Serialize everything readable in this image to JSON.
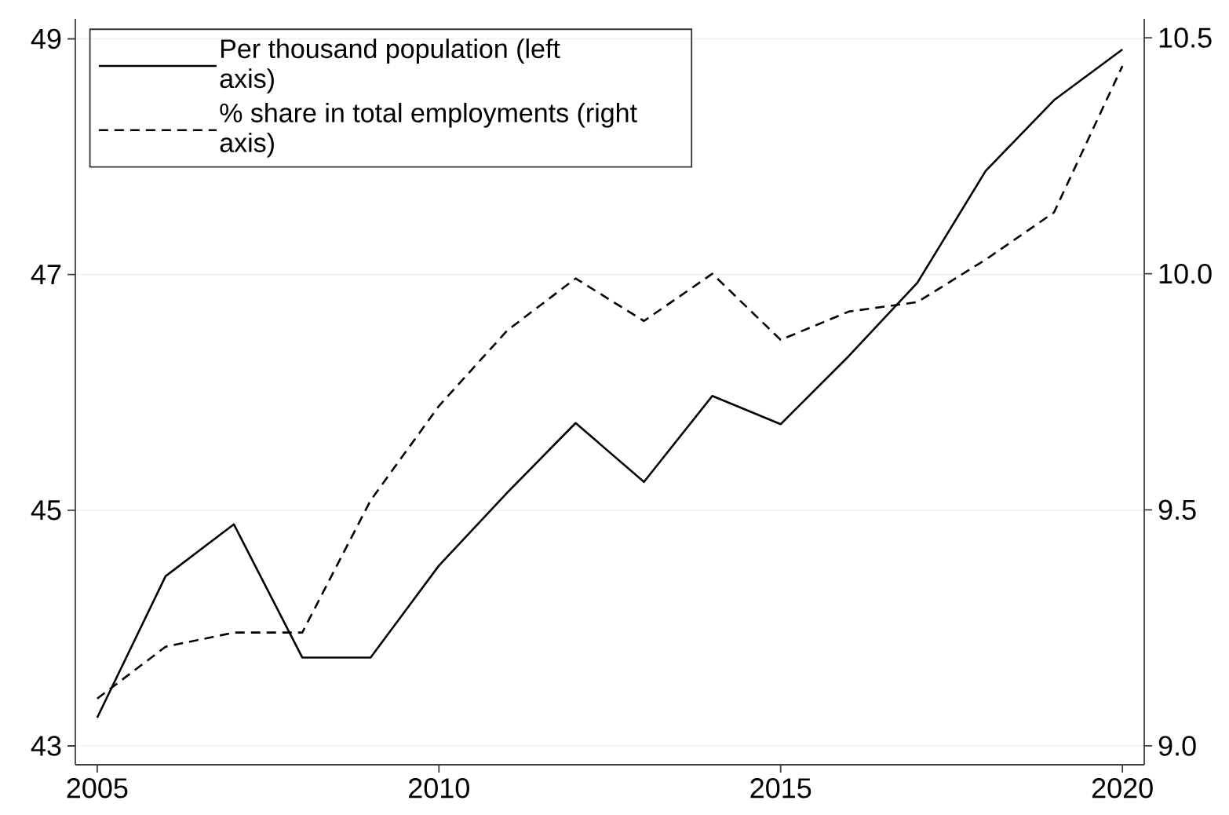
{
  "chart_data": {
    "type": "line",
    "x": [
      2005,
      2006,
      2007,
      2008,
      2009,
      2010,
      2011,
      2012,
      2013,
      2014,
      2015,
      2016,
      2017,
      2018,
      2019,
      2020
    ],
    "xlim": [
      2004.68,
      2020.32
    ],
    "xticks": [
      2005,
      2010,
      2015,
      2020
    ],
    "ylim": [
      42.84,
      49.17
    ],
    "yticks": [
      43,
      45,
      47,
      49
    ],
    "y2lim": [
      8.96,
      10.54
    ],
    "y2ticks": [
      {
        "value": 9,
        "label": "9.0"
      },
      {
        "value": 9.5,
        "label": "9.5"
      },
      {
        "value": 10,
        "label": "10.0"
      },
      {
        "value": 10.5,
        "label": "10.5"
      }
    ],
    "grid": "y",
    "legend": "top left",
    "series": [
      {
        "name": "Per thousand population (left axis)",
        "color": "#000000",
        "line_style": "solid",
        "values": [
          43.24,
          44.44,
          44.88,
          43.75,
          43.75,
          44.53,
          45.15,
          45.74,
          45.24,
          45.97,
          45.73,
          46.31,
          46.93,
          47.88,
          48.48,
          48.91
        ]
      },
      {
        "name": "% share in total employments (right axis)",
        "color": "#000000",
        "line_style": "dashed",
        "axis": "y2",
        "values": [
          9.1,
          9.21,
          9.24,
          9.24,
          9.52,
          9.72,
          9.88,
          9.99,
          9.9,
          10.0,
          9.86,
          9.92,
          9.94,
          10.03,
          10.13,
          10.44
        ]
      }
    ]
  }
}
